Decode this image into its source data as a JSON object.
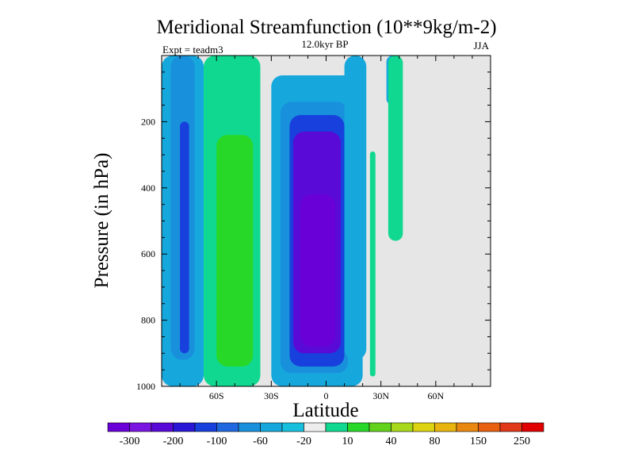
{
  "chart_data": {
    "type": "heatmap",
    "title": "Meridional Streamfunction (10**9kg/m-2)",
    "subtitle_left": "Expt = teadm3",
    "subtitle_center": "12.0kyr BP",
    "subtitle_right": "JJA",
    "xlabel": "Latitude",
    "ylabel": "Pressure (in hPa)",
    "xlim": [
      -90,
      90
    ],
    "ylim": [
      0,
      1000
    ],
    "y_reversed": true,
    "x_ticks": [
      {
        "value": -60,
        "label": "60S"
      },
      {
        "value": -30,
        "label": "30S"
      },
      {
        "value": 0,
        "label": "0"
      },
      {
        "value": 30,
        "label": "30N"
      },
      {
        "value": 60,
        "label": "60N"
      }
    ],
    "y_ticks": [
      {
        "value": 200,
        "label": "200"
      },
      {
        "value": 400,
        "label": "400"
      },
      {
        "value": 600,
        "label": "600"
      },
      {
        "value": 800,
        "label": "800"
      },
      {
        "value": 1000,
        "label": "1000"
      }
    ],
    "background_color": "#e6e6e6",
    "colorbar": {
      "colors": [
        "#6a00d8",
        "#7a14e0",
        "#5a0ad6",
        "#2a18d6",
        "#1840dc",
        "#1f68e0",
        "#1990dc",
        "#16a8dc",
        "#16c0dc",
        "#ededed",
        "#10d890",
        "#28d828",
        "#62d21c",
        "#a8d81a",
        "#dcd412",
        "#e8b410",
        "#e88810",
        "#e86010",
        "#e03818",
        "#e00000"
      ],
      "labels": [
        "-300",
        "-200",
        "-100",
        "-60",
        "-20",
        "10",
        "40",
        "80",
        "150",
        "250"
      ],
      "label_positions": [
        0.5,
        2.5,
        4.5,
        6.5,
        8.5,
        10.5,
        12.5,
        14.5,
        16.5,
        18.5
      ]
    },
    "regions": [
      {
        "name": "sh-polar-cell-light",
        "level": -20,
        "x0": -90,
        "x1": -67,
        "p0": 0,
        "p1": 1000
      },
      {
        "name": "sh-polar-cell-core",
        "level": -60,
        "x0": -85,
        "x1": -72,
        "p0": 0,
        "p1": 920
      },
      {
        "name": "sh-polar-cell-inner",
        "level": -100,
        "x0": -80,
        "x1": -75,
        "p0": 200,
        "p1": 900
      },
      {
        "name": "sh-ferrel-cell-outer",
        "level": 10,
        "x0": -67,
        "x1": -36,
        "p0": 0,
        "p1": 1000
      },
      {
        "name": "sh-ferrel-cell-inner",
        "level": 40,
        "x0": -60,
        "x1": -40,
        "p0": 240,
        "p1": 940
      },
      {
        "name": "hadley-cell-outer",
        "level": -20,
        "x0": -30,
        "x1": 20,
        "p0": 60,
        "p1": 1000
      },
      {
        "name": "hadley-cell-band-1",
        "level": -60,
        "x0": -25,
        "x1": 12,
        "p0": 140,
        "p1": 960
      },
      {
        "name": "hadley-cell-band-2",
        "level": -100,
        "x0": -20,
        "x1": 10,
        "p0": 180,
        "p1": 940
      },
      {
        "name": "hadley-cell-band-3",
        "level": -200,
        "x0": -18,
        "x1": 8,
        "p0": 230,
        "p1": 900
      },
      {
        "name": "hadley-cell-core",
        "level": -300,
        "x0": -14,
        "x1": 5,
        "p0": 420,
        "p1": 880
      },
      {
        "name": "nh-subtropical-cell",
        "level": -20,
        "x0": 10,
        "x1": 22,
        "p0": 0,
        "p1": 920
      },
      {
        "name": "nh-thin-positive-cell",
        "level": 10,
        "x0": 24,
        "x1": 27,
        "p0": 290,
        "p1": 970
      },
      {
        "name": "nh-midlat-cell",
        "level": -20,
        "x0": 33,
        "x1": 40,
        "p0": 0,
        "p1": 150
      },
      {
        "name": "nh-midlat-positive-cell",
        "level": 10,
        "x0": 34,
        "x1": 42,
        "p0": 0,
        "p1": 560
      }
    ]
  }
}
